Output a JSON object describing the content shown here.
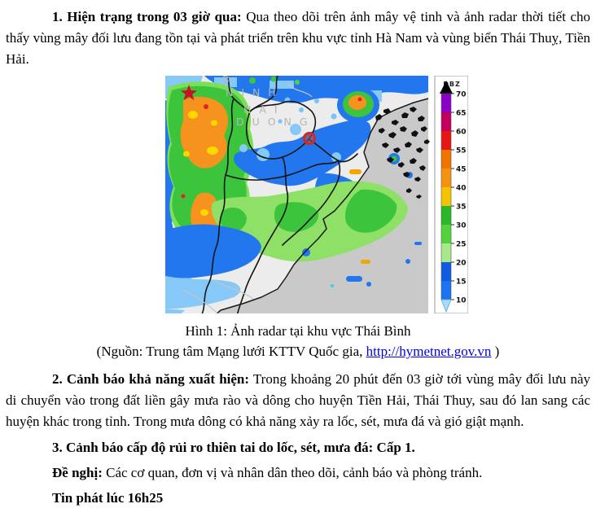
{
  "document": {
    "p1": {
      "lead": "1. Hiện trạng trong 03 giờ qua:",
      "body": " Qua theo dõi trên ảnh mây vệ tinh và ảnh radar thời tiết cho thấy vùng mây đối lưu đang tồn tại và phát triển trên khu vực tỉnh Hà Nam và vùng biển Thái Thuỵ, Tiền Hải."
    },
    "caption": "Hình 1: Ảnh radar tại khu vực Thái Bình",
    "source_prefix": "(Nguồn: Trung tâm Mạng lưới KTTV Quốc gia, ",
    "source_link": "http://hymetnet.gov.vn",
    "source_suffix": " )",
    "p2": {
      "lead": "2. Cảnh báo khả năng xuất hiện:",
      "body": " Trong khoảng 20 phút đến 03 giờ tới vùng mây đối lưu này di chuyển vào trong đất liền gây mưa rào và dông cho huyện Tiền Hải, Thái Thuy, sau đó lan sang các huyện khác trong tỉnh. Trong mưa dông có khả năng xảy ra lốc, sét, mưa đá và gió giật mạnh."
    },
    "p3": "3. Cảnh báo cấp độ rủi ro thiên tai do lốc, sét, mưa đá: Cấp 1.",
    "p4": {
      "lead": "Đề nghị:",
      "body": " Các cơ quan, đơn vị và nhân dân theo dõi, cảnh báo và phòng tránh."
    },
    "p5": "Tin phát lúc 16h25"
  },
  "radar": {
    "unit_label": "DBZ",
    "map_labels": [
      {
        "text": "B"
      },
      {
        "text": "N I N H"
      },
      {
        "text": "H A I"
      },
      {
        "text": "D U O N G"
      }
    ],
    "colorbar": {
      "ticks": [
        "70",
        "65",
        "60",
        "55",
        "45",
        "40",
        "35",
        "30",
        "25",
        "20",
        "15",
        "10"
      ],
      "segment_colors": [
        "#8b00c8",
        "#c4005f",
        "#e81515",
        "#f07400",
        "#f59310",
        "#f5c400",
        "#28b828",
        "#52d23c",
        "#a8e88c",
        "#0f5ce0",
        "#1b74f0"
      ],
      "arrow_top_color": "#000000",
      "arrow_bottom_color": "#a8ddf4"
    },
    "marker_colors": {
      "star": "#cc1122",
      "circle": "#c22f2f"
    }
  },
  "colors": {
    "link": "#0000ee",
    "sea": "#c9c9c9",
    "land": "#ececec"
  }
}
